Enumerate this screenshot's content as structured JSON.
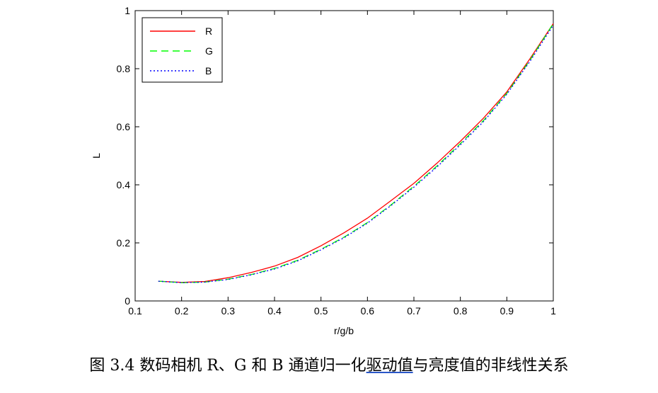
{
  "chart_data": {
    "type": "line",
    "xlabel": "r/g/b",
    "ylabel": "L",
    "xlim": [
      0.1,
      1
    ],
    "ylim": [
      0,
      1
    ],
    "xticks": [
      "0.1",
      "0.2",
      "0.3",
      "0.4",
      "0.5",
      "0.6",
      "0.7",
      "0.8",
      "0.9",
      "1"
    ],
    "yticks": [
      "0",
      "0.2",
      "0.4",
      "0.6",
      "0.8",
      "1"
    ],
    "grid": false,
    "legend_position": "top-left",
    "x": [
      0.15,
      0.2,
      0.25,
      0.3,
      0.35,
      0.4,
      0.45,
      0.5,
      0.55,
      0.6,
      0.65,
      0.7,
      0.75,
      0.8,
      0.85,
      0.9,
      0.95,
      1.0
    ],
    "series": [
      {
        "name": "R",
        "color": "#ff0000",
        "style": "solid",
        "values": [
          0.068,
          0.064,
          0.067,
          0.08,
          0.098,
          0.12,
          0.15,
          0.19,
          0.235,
          0.285,
          0.345,
          0.405,
          0.475,
          0.55,
          0.63,
          0.72,
          0.835,
          0.955
        ]
      },
      {
        "name": "G",
        "color": "#00ff00",
        "style": "dashed",
        "values": [
          0.068,
          0.063,
          0.065,
          0.075,
          0.091,
          0.112,
          0.14,
          0.178,
          0.22,
          0.27,
          0.33,
          0.395,
          0.465,
          0.542,
          0.622,
          0.715,
          0.83,
          0.955
        ]
      },
      {
        "name": "B",
        "color": "#0000ff",
        "style": "dotted",
        "values": [
          0.068,
          0.063,
          0.065,
          0.074,
          0.09,
          0.11,
          0.138,
          0.176,
          0.218,
          0.268,
          0.328,
          0.392,
          0.462,
          0.538,
          0.618,
          0.712,
          0.826,
          0.95
        ]
      }
    ]
  },
  "caption": {
    "prefix": "图 3.4  数码相机 R、G 和 B 通道归一化",
    "underlined": "驱动值",
    "suffix": "与亮度值的非线性关系"
  }
}
